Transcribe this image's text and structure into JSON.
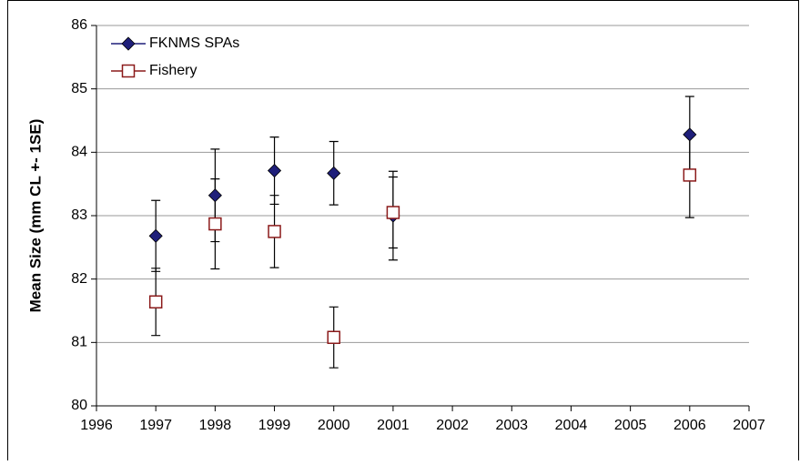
{
  "chart_data": {
    "type": "scatter",
    "y_label": "Mean Size (mm CL +- 1SE)",
    "xlim": [
      1996,
      2007
    ],
    "xticks": [
      1996,
      1997,
      1998,
      1999,
      2000,
      2001,
      2002,
      2003,
      2004,
      2005,
      2006,
      2007
    ],
    "ylim": [
      80,
      86
    ],
    "yticks": [
      80,
      81,
      82,
      83,
      84,
      85,
      86
    ],
    "grid": true,
    "legend": "top-left",
    "series": [
      {
        "name": "FKNMS SPAs",
        "color": "#1f1f7a",
        "marker": "diamond",
        "x": [
          1997,
          1998,
          1999,
          2000,
          2001,
          2006
        ],
        "values": [
          82.68,
          83.32,
          83.71,
          83.67,
          83.0,
          84.28
        ],
        "errors": [
          0.56,
          0.73,
          0.53,
          0.5,
          0.7,
          0.6
        ]
      },
      {
        "name": "Fishery",
        "color": "#8b1a1a",
        "marker": "square",
        "x": [
          1997,
          1998,
          1999,
          2000,
          2001,
          2006
        ],
        "values": [
          81.64,
          82.87,
          82.75,
          81.08,
          83.05,
          83.64
        ],
        "errors": [
          0.53,
          0.71,
          0.57,
          0.48,
          0.56,
          0.67
        ]
      }
    ]
  }
}
